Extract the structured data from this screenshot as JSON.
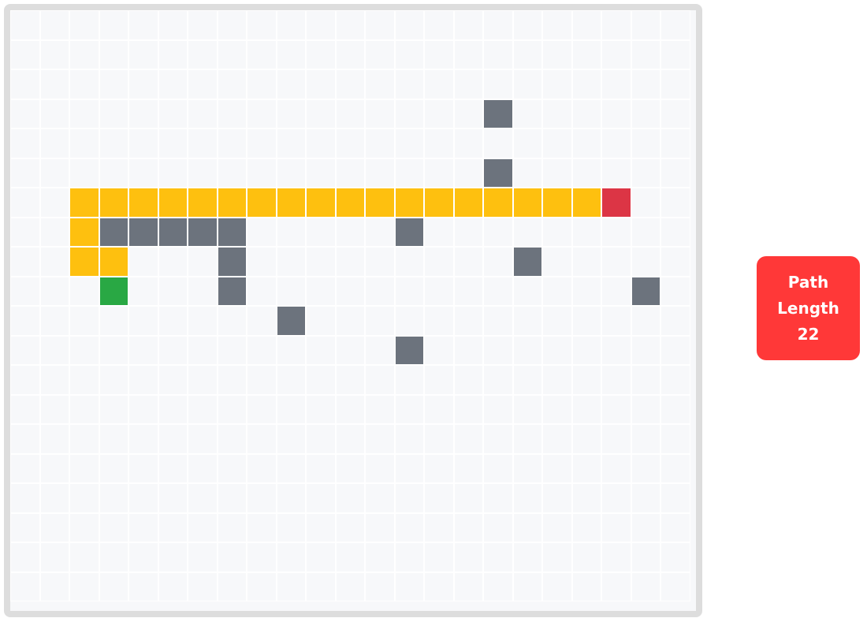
{
  "game": {
    "grid": {
      "cols": 23,
      "rows": 20
    },
    "colors": {
      "empty": "#f7f8fa",
      "wall": "#6c737d",
      "path": "#fec00f",
      "start": "#29a844",
      "end": "#dc3545",
      "badge": "#ff3838"
    },
    "walls": [
      [
        16,
        3
      ],
      [
        16,
        5
      ],
      [
        3,
        7
      ],
      [
        4,
        7
      ],
      [
        5,
        7
      ],
      [
        6,
        7
      ],
      [
        7,
        7
      ],
      [
        13,
        7
      ],
      [
        7,
        8
      ],
      [
        17,
        8
      ],
      [
        7,
        9
      ],
      [
        21,
        9
      ],
      [
        9,
        10
      ],
      [
        13,
        11
      ]
    ],
    "path": [
      [
        2,
        6
      ],
      [
        3,
        6
      ],
      [
        4,
        6
      ],
      [
        5,
        6
      ],
      [
        6,
        6
      ],
      [
        7,
        6
      ],
      [
        8,
        6
      ],
      [
        9,
        6
      ],
      [
        10,
        6
      ],
      [
        11,
        6
      ],
      [
        12,
        6
      ],
      [
        13,
        6
      ],
      [
        14,
        6
      ],
      [
        15,
        6
      ],
      [
        16,
        6
      ],
      [
        17,
        6
      ],
      [
        18,
        6
      ],
      [
        19,
        6
      ],
      [
        2,
        7
      ],
      [
        2,
        8
      ],
      [
        3,
        8
      ]
    ],
    "start": [
      3,
      9
    ],
    "end": [
      20,
      6
    ]
  },
  "status": {
    "line1": "Path",
    "line2": "Length",
    "value": "22"
  }
}
